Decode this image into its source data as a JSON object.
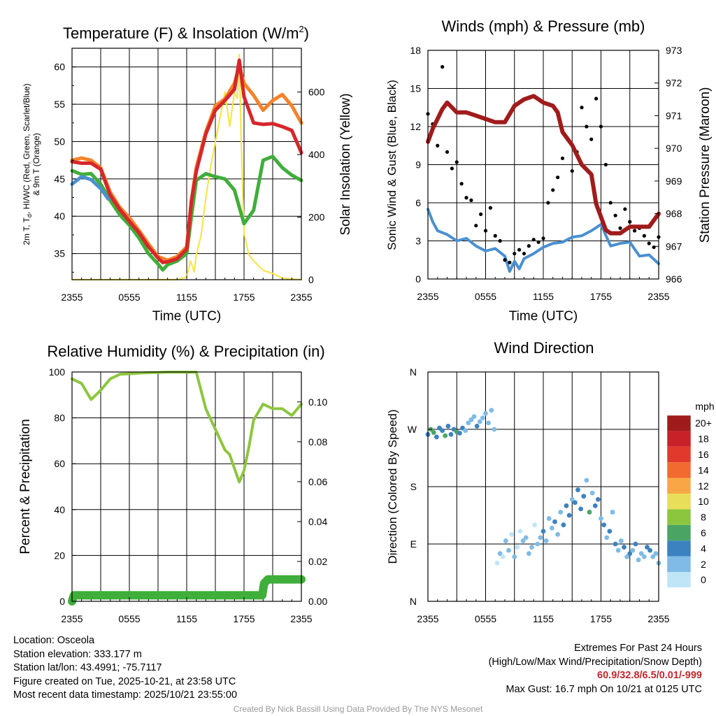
{
  "colors": {
    "temperature": "#d7262b",
    "dewpoint": "#3fae3a",
    "heat_index_wc": "#d7262b",
    "windchill_low": "#4a90d0",
    "temp_9m": "#f5822a",
    "insolation": "#f6e54f",
    "wind": "#4a90d0",
    "gust": "#000000",
    "pressure": "#a01c1c",
    "rh": "#8cc63f",
    "precip": "#3fae3a"
  },
  "panels": {
    "temp": {
      "title": "Temperature (F) & Insolation (W/m²)",
      "ylabel_lines": [
        "2m T, T_d, HI/WC (Red, Green, Scarlet/Blue)",
        "& 9m T (Orange)"
      ],
      "y2label": "Solar Insolation (Yellow)",
      "xlabel": "Time (UTC)"
    },
    "wind": {
      "title": "Winds (mph) & Pressure (mb)",
      "ylabel": "Sonic Wind & Gust (Blue, Black)",
      "y2label": "Station Pressure (Maroon)",
      "xlabel": "Time (UTC)"
    },
    "rh": {
      "title": "Relative Humidity (%) & Precipitation (in)",
      "ylabel": "Percent & Precipitation"
    },
    "dir": {
      "title": "Wind Direction",
      "ylabel": "Direction (Colored By Speed)"
    }
  },
  "colorbar": {
    "unit": "mph",
    "labels": [
      "20+",
      "18",
      "16",
      "14",
      "12",
      "10",
      "8",
      "6",
      "4",
      "2",
      "0"
    ],
    "colors": [
      "#a01c1c",
      "#c82127",
      "#e2392d",
      "#f26a30",
      "#f9a746",
      "#e8de5a",
      "#8cc63f",
      "#4aa564",
      "#3c82c1",
      "#7fbbe6",
      "#bfe5f7"
    ]
  },
  "chart_data": [
    {
      "type": "line",
      "title": "Temperature (F) & Insolation (W/m²)",
      "xlabel": "Time (UTC)",
      "ylabel": "2m T, Td, HI/WC (Red, Green, Scarlet/Blue) & 9m T (Orange)",
      "y2label": "Solar Insolation (Yellow)",
      "x_ticks": [
        "2355",
        "0555",
        "1155",
        "1755",
        "2355"
      ],
      "xlim_hours": [
        0,
        24
      ],
      "ylim": [
        31.5,
        62.5
      ],
      "y_ticks": [
        35,
        40,
        45,
        50,
        55,
        60
      ],
      "y2lim": [
        0,
        740
      ],
      "y2_ticks": [
        0,
        200,
        400,
        600
      ],
      "series": [
        {
          "name": "2m Temperature",
          "color": "#d7262b",
          "x": [
            0,
            1,
            2,
            3,
            4,
            5,
            6,
            7,
            8,
            9,
            9.5,
            10,
            11,
            12,
            12.5,
            13,
            14,
            15,
            16,
            17,
            17.5,
            18,
            19,
            20,
            21,
            22,
            23,
            23.5,
            24
          ],
          "y": [
            47.3,
            47.1,
            47.1,
            46.3,
            42.8,
            40.9,
            39.3,
            37.8,
            35.9,
            34.4,
            33.8,
            33.9,
            34.3,
            35.6,
            42,
            46,
            51,
            54.2,
            55.5,
            57,
            60.9,
            56,
            52.5,
            52.3,
            52.4,
            52,
            51.5,
            50,
            48.5
          ]
        },
        {
          "name": "2m Dewpoint",
          "color": "#3fae3a",
          "x": [
            0,
            1,
            2,
            3,
            4,
            5,
            6,
            7,
            8,
            9,
            9.5,
            10,
            11,
            12,
            12.5,
            13,
            14,
            15,
            16,
            17,
            18,
            19,
            20,
            21,
            22,
            23,
            24
          ],
          "y": [
            46.1,
            45.6,
            45.7,
            44.3,
            42.1,
            40.2,
            38.8,
            37.1,
            35,
            33.6,
            32.8,
            33.5,
            34,
            35,
            40,
            44.8,
            45.7,
            45.3,
            45,
            43.5,
            39,
            40.8,
            47.5,
            48,
            46.5,
            45.5,
            44.8
          ]
        },
        {
          "name": "Wind Chill",
          "color": "#4a90d0",
          "x": [
            0,
            1,
            2,
            3,
            3.8
          ],
          "y": [
            44.3,
            45.3,
            44.9,
            43.7,
            42.3
          ]
        },
        {
          "name": "9m Temperature",
          "color": "#f5822a",
          "x": [
            0,
            1,
            2,
            3,
            4,
            5,
            6,
            7,
            8,
            9,
            10,
            11,
            12,
            12.5,
            13,
            14,
            15,
            16,
            17,
            17.5,
            18,
            19,
            20,
            21,
            22,
            23,
            24
          ],
          "y": [
            47.5,
            47.8,
            47.5,
            46.5,
            43.2,
            41.2,
            39.8,
            38.1,
            36.3,
            34.6,
            34.1,
            34.6,
            35.9,
            42.2,
            46.5,
            51.3,
            54.8,
            55.7,
            57.8,
            60.1,
            57.8,
            56.2,
            54.2,
            55.5,
            56.3,
            54.8,
            52.5
          ]
        },
        {
          "name": "Solar Insolation",
          "axis": "y2",
          "color": "#f6e54f",
          "x": [
            0,
            11,
            12,
            12.4,
            12.8,
            13,
            13.5,
            14,
            14.5,
            15,
            15.5,
            16,
            16.5,
            17,
            17.3,
            17.5,
            17.7,
            18,
            18.5,
            19,
            20,
            21,
            22,
            24
          ],
          "y": [
            0,
            0,
            8,
            60,
            25,
            80,
            140,
            260,
            360,
            440,
            520,
            600,
            490,
            600,
            580,
            720,
            450,
            150,
            80,
            60,
            30,
            20,
            5,
            0
          ]
        }
      ]
    },
    {
      "type": "line",
      "title": "Winds (mph) & Pressure (mb)",
      "xlabel": "Time (UTC)",
      "ylabel": "Sonic Wind & Gust (Blue, Black)",
      "y2label": "Station Pressure (Maroon)",
      "x_ticks": [
        "2355",
        "0555",
        "1155",
        "1755",
        "2355"
      ],
      "xlim_hours": [
        0,
        24
      ],
      "ylim": [
        0,
        18
      ],
      "y_ticks": [
        0,
        3,
        6,
        9,
        12,
        15,
        18
      ],
      "y2lim": [
        966,
        973
      ],
      "y2_ticks": [
        966,
        967,
        968,
        969,
        970,
        971,
        972,
        973
      ],
      "series": [
        {
          "name": "Sonic Wind",
          "color": "#4a90d0",
          "x": [
            0,
            0.5,
            1,
            2,
            3,
            4,
            5,
            6,
            7,
            8,
            8.5,
            9,
            9.5,
            10,
            11,
            12,
            13,
            14,
            15,
            16,
            17,
            18,
            19,
            20,
            21,
            22,
            23,
            24
          ],
          "y": [
            5.5,
            4.5,
            3.8,
            3.5,
            3,
            3.2,
            2.6,
            2.2,
            2.4,
            1.8,
            0.6,
            1.4,
            0.8,
            1.6,
            2,
            2.5,
            2.8,
            2.9,
            3.3,
            3.4,
            3.8,
            4.3,
            2.6,
            2.8,
            2.9,
            1.8,
            1.9,
            1.2
          ]
        },
        {
          "name": "Gust",
          "mode": "markers",
          "color": "#000000",
          "x": [
            0,
            0.5,
            1,
            1.5,
            2,
            2.5,
            3,
            3.5,
            4,
            4.5,
            5,
            5.5,
            6,
            6.5,
            7,
            7.5,
            8,
            8.5,
            9,
            9.5,
            10,
            10.5,
            11,
            11.5,
            12,
            12.5,
            13,
            13.5,
            14,
            14.5,
            15,
            15.5,
            16,
            16.5,
            17,
            17.5,
            18,
            18.5,
            19,
            19.5,
            20,
            20.5,
            21,
            21.5,
            22,
            22.5,
            23,
            23.5,
            24
          ],
          "y": [
            13,
            12.2,
            10.5,
            16.7,
            10,
            8.7,
            9.2,
            7.5,
            6.4,
            6.2,
            4.2,
            5.1,
            3.8,
            5.6,
            3.4,
            3,
            1.5,
            1.3,
            2,
            2.3,
            2,
            2.6,
            3.1,
            2.9,
            3.2,
            6,
            7,
            8,
            9.5,
            11,
            8.5,
            10,
            13.5,
            12,
            11,
            14.2,
            12,
            9,
            6,
            5,
            4,
            5.5,
            4.5,
            3.8,
            4,
            3.4,
            2.8,
            2.5,
            3.3
          ]
        },
        {
          "name": "Station Pressure",
          "axis": "y2",
          "color": "#a01c1c",
          "x": [
            0,
            0.5,
            1,
            1.5,
            2,
            3,
            4,
            5,
            6,
            7,
            8,
            9,
            10,
            11,
            12,
            13,
            13.5,
            14,
            15,
            15.5,
            16,
            17,
            17.5,
            18,
            18.5,
            19,
            20,
            21,
            22,
            23,
            24
          ],
          "y": [
            970.2,
            970.6,
            970.9,
            971.2,
            971.4,
            971.1,
            971.1,
            971,
            970.9,
            970.8,
            970.8,
            971.3,
            971.5,
            971.6,
            971.4,
            971.3,
            971.1,
            970.5,
            970.1,
            969.8,
            969.5,
            969.2,
            968.3,
            967.9,
            967.5,
            967.4,
            967.4,
            967.6,
            967.6,
            967.6,
            968
          ]
        }
      ]
    },
    {
      "type": "line",
      "title": "Relative Humidity (%) & Precipitation (in)",
      "ylabel": "Percent & Precipitation",
      "x_ticks": [
        "2355",
        "0555",
        "1155",
        "1755",
        "2355"
      ],
      "xlim_hours": [
        0,
        24
      ],
      "ylim": [
        0,
        100
      ],
      "y_ticks": [
        0,
        20,
        40,
        60,
        80,
        100
      ],
      "y2lim": [
        0,
        0.115
      ],
      "y2_ticks": [
        0.0,
        0.02,
        0.04,
        0.06,
        0.08,
        0.1
      ],
      "series": [
        {
          "name": "Relative Humidity",
          "color": "#8cc63f",
          "x": [
            0,
            1,
            2,
            3,
            4,
            5,
            6,
            7,
            8,
            9,
            10,
            11,
            12,
            13,
            13.5,
            14,
            15,
            16,
            16.5,
            17,
            17.5,
            18,
            18.5,
            19,
            20,
            21,
            22,
            23,
            24
          ],
          "y": [
            97,
            95,
            88,
            92,
            97,
            99,
            99.2,
            99.5,
            99.7,
            99.8,
            99.9,
            99.9,
            99.9,
            99.9,
            92,
            84,
            75,
            66,
            64,
            58,
            52,
            57,
            67,
            79,
            86,
            84,
            84,
            81,
            86
          ]
        },
        {
          "name": "Precipitation",
          "axis": "y2",
          "color": "#3fae3a",
          "x": [
            0,
            0.2,
            19.9,
            20.1,
            20.5,
            24
          ],
          "y": [
            0,
            0.003,
            0.003,
            0.009,
            0.011,
            0.011
          ]
        }
      ]
    },
    {
      "type": "scatter",
      "title": "Wind Direction",
      "ylabel": "Direction (Colored By Speed)",
      "x_ticks": [
        "2355",
        "0555",
        "1155",
        "1755",
        "2355"
      ],
      "xlim_hours": [
        0,
        24
      ],
      "y_ticks": [
        "N",
        "E",
        "S",
        "W",
        "N"
      ],
      "ylim_degrees": [
        0,
        360
      ],
      "colorbar_unit": "mph",
      "x": [
        0,
        0.3,
        0.6,
        0.9,
        1.2,
        1.5,
        1.8,
        2.1,
        2.4,
        2.7,
        3,
        3.3,
        3.6,
        3.9,
        4.2,
        4.5,
        4.8,
        5.1,
        5.4,
        5.7,
        6,
        6.3,
        6.6,
        6.9,
        7.2,
        7.5,
        7.8,
        8.1,
        8.4,
        8.7,
        9,
        9.3,
        9.6,
        9.9,
        10.2,
        10.5,
        10.8,
        11.1,
        11.4,
        11.7,
        12,
        12.3,
        12.6,
        12.9,
        13.2,
        13.5,
        13.8,
        14.1,
        14.4,
        14.7,
        15,
        15.3,
        15.6,
        15.9,
        16.2,
        16.5,
        16.8,
        17.1,
        17.4,
        17.7,
        18,
        18.3,
        18.6,
        18.9,
        19.2,
        19.5,
        19.8,
        20.1,
        20.4,
        20.7,
        21,
        21.3,
        21.6,
        21.9,
        22.2,
        22.5,
        22.8,
        23.1,
        23.4,
        23.7,
        24
      ],
      "y": [
        262,
        270,
        265,
        258,
        272,
        268,
        260,
        275,
        262,
        270,
        266,
        264,
        272,
        268,
        280,
        285,
        290,
        275,
        282,
        288,
        295,
        280,
        300,
        270,
        60,
        75,
        70,
        95,
        80,
        105,
        70,
        85,
        110,
        95,
        100,
        75,
        85,
        120,
        90,
        100,
        110,
        95,
        130,
        115,
        125,
        105,
        140,
        120,
        150,
        135,
        160,
        155,
        175,
        145,
        165,
        190,
        140,
        170,
        150,
        160,
        130,
        120,
        100,
        110,
        140,
        90,
        80,
        95,
        85,
        70,
        75,
        80,
        90,
        65,
        75,
        70,
        85,
        80,
        70,
        75,
        60
      ],
      "speed": [
        4,
        5,
        6,
        4,
        3,
        4,
        5,
        4,
        3,
        4,
        5,
        4,
        3,
        2,
        2,
        1,
        2,
        3,
        2,
        1,
        2,
        2,
        1,
        1,
        0,
        1,
        0,
        1,
        2,
        0,
        1,
        0,
        0,
        1,
        2,
        1,
        1,
        0,
        2,
        1,
        3,
        1,
        2,
        2,
        3,
        2,
        1,
        3,
        4,
        3,
        2,
        4,
        3,
        3,
        4,
        1,
        6,
        2,
        4,
        3,
        2,
        3,
        1,
        3,
        1,
        3,
        2,
        2,
        3,
        2,
        3,
        1,
        4,
        2,
        2,
        2,
        3,
        3,
        2,
        1,
        1
      ]
    }
  ],
  "info": {
    "location": "Location: Osceola",
    "elevation": "Station elevation: 333.177 m",
    "latlon": "Station lat/lon: 43.4991; -75.7117",
    "created": "Figure created on Tue, 2025-10-21, at 23:58 UTC",
    "recent": "Most recent data timestamp: 2025/10/21 23:55:00",
    "extremes_title": "Extremes For Past 24 Hours",
    "extremes_subtitle": "(High/Low/Max Wind/Precipitation/Snow Depth)",
    "extremes_values": "60.9/32.8/6.5/0.01/-999",
    "max_gust": "Max Gust: 16.7 mph On 10/21 at 0125 UTC",
    "credit": "Created By Nick Bassill Using Data Provided By The NYS Mesonet"
  }
}
